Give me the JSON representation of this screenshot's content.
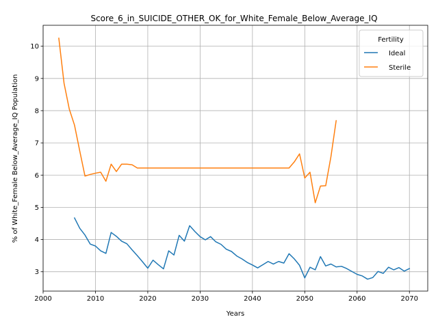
{
  "chart_data": {
    "type": "line",
    "title": "Score_6_in_SUICIDE_OTHER_OK_for_White_Female_Below_Average_IQ",
    "xlabel": "Years",
    "ylabel": "% of White_Female Below_Average_IQ Population",
    "xlim": [
      2000,
      2073.5
    ],
    "ylim": [
      2.4,
      10.65
    ],
    "x_ticks": [
      2000,
      2010,
      2020,
      2030,
      2040,
      2050,
      2060,
      2070
    ],
    "y_ticks": [
      3,
      4,
      5,
      6,
      7,
      8,
      9,
      10
    ],
    "grid": true,
    "legend": {
      "title": "Fertility",
      "placement": "top-right"
    },
    "series": [
      {
        "name": "Ideal",
        "color": "#1f77b4",
        "points": [
          [
            2006,
            4.67
          ],
          [
            2007,
            4.35
          ],
          [
            2008,
            4.14
          ],
          [
            2009,
            3.86
          ],
          [
            2010,
            3.8
          ],
          [
            2011,
            3.65
          ],
          [
            2012,
            3.57
          ],
          [
            2013,
            4.22
          ],
          [
            2014,
            4.1
          ],
          [
            2015,
            3.95
          ],
          [
            2016,
            3.87
          ],
          [
            2017,
            3.68
          ],
          [
            2018,
            3.5
          ],
          [
            2019,
            3.31
          ],
          [
            2020,
            3.11
          ],
          [
            2021,
            3.36
          ],
          [
            2022,
            3.22
          ],
          [
            2023,
            3.09
          ],
          [
            2024,
            3.65
          ],
          [
            2025,
            3.52
          ],
          [
            2026,
            4.13
          ],
          [
            2027,
            3.95
          ],
          [
            2028,
            4.43
          ],
          [
            2029,
            4.25
          ],
          [
            2030,
            4.09
          ],
          [
            2031,
            3.99
          ],
          [
            2032,
            4.09
          ],
          [
            2033,
            3.93
          ],
          [
            2034,
            3.85
          ],
          [
            2035,
            3.7
          ],
          [
            2036,
            3.63
          ],
          [
            2037,
            3.49
          ],
          [
            2038,
            3.4
          ],
          [
            2039,
            3.29
          ],
          [
            2040,
            3.21
          ],
          [
            2041,
            3.12
          ],
          [
            2042,
            3.22
          ],
          [
            2043,
            3.32
          ],
          [
            2044,
            3.24
          ],
          [
            2045,
            3.32
          ],
          [
            2046,
            3.27
          ],
          [
            2047,
            3.56
          ],
          [
            2048,
            3.4
          ],
          [
            2049,
            3.2
          ],
          [
            2050,
            2.81
          ],
          [
            2051,
            3.14
          ],
          [
            2052,
            3.06
          ],
          [
            2053,
            3.47
          ],
          [
            2054,
            3.18
          ],
          [
            2055,
            3.24
          ],
          [
            2056,
            3.15
          ],
          [
            2057,
            3.17
          ],
          [
            2058,
            3.1
          ],
          [
            2059,
            3.01
          ],
          [
            2060,
            2.92
          ],
          [
            2061,
            2.87
          ],
          [
            2062,
            2.77
          ],
          [
            2063,
            2.82
          ],
          [
            2064,
            3.01
          ],
          [
            2065,
            2.95
          ],
          [
            2066,
            3.14
          ],
          [
            2067,
            3.06
          ],
          [
            2068,
            3.13
          ],
          [
            2069,
            3.02
          ],
          [
            2070,
            3.1
          ]
        ]
      },
      {
        "name": "Sterile",
        "color": "#ff7f0e",
        "points": [
          [
            2003,
            10.25
          ],
          [
            2004,
            8.85
          ],
          [
            2005,
            8.05
          ],
          [
            2006,
            7.55
          ],
          [
            2007,
            6.75
          ],
          [
            2008,
            5.97
          ],
          [
            2009,
            6.02
          ],
          [
            2010,
            6.06
          ],
          [
            2011,
            6.09
          ],
          [
            2012,
            5.81
          ],
          [
            2013,
            6.34
          ],
          [
            2014,
            6.11
          ],
          [
            2015,
            6.34
          ],
          [
            2016,
            6.34
          ],
          [
            2017,
            6.32
          ],
          [
            2018,
            6.22
          ],
          [
            2019,
            6.22
          ],
          [
            2020,
            6.22
          ],
          [
            2025,
            6.22
          ],
          [
            2030,
            6.22
          ],
          [
            2035,
            6.22
          ],
          [
            2040,
            6.22
          ],
          [
            2045,
            6.22
          ],
          [
            2047,
            6.22
          ],
          [
            2048,
            6.41
          ],
          [
            2049,
            6.66
          ],
          [
            2050,
            5.91
          ],
          [
            2051,
            6.09
          ],
          [
            2052,
            5.14
          ],
          [
            2053,
            5.66
          ],
          [
            2054,
            5.67
          ],
          [
            2055,
            6.57
          ],
          [
            2056,
            7.69
          ]
        ]
      }
    ]
  }
}
